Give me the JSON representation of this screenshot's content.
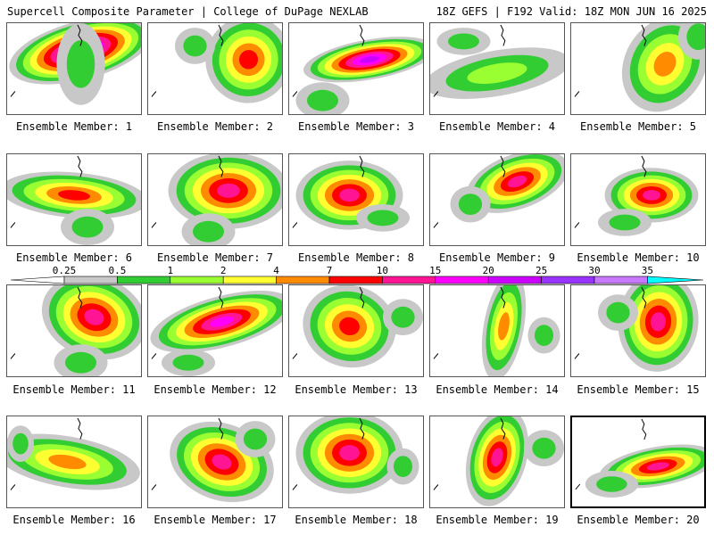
{
  "header": {
    "left": "Supercell Composite Parameter | College of DuPage NEXLAB",
    "right": "18Z GEFS | F192 Valid: 18Z MON JUN 16 2025"
  },
  "colorbar": {
    "ticks": [
      "0.25",
      "0.5",
      "1",
      "2",
      "4",
      "7",
      "10",
      "15",
      "20",
      "25",
      "30",
      "35"
    ],
    "colors": [
      "#ffffff",
      "#c8c8c8",
      "#32cd32",
      "#9aff32",
      "#ffff32",
      "#ff8c00",
      "#ff0000",
      "#ff1493",
      "#ff00ff",
      "#cc00ff",
      "#9933ff",
      "#c878ff",
      "#00ffff"
    ]
  },
  "members": [
    {
      "label": "Ensemble Member: 1",
      "peak": 25
    },
    {
      "label": "Ensemble Member: 2",
      "peak": 7
    },
    {
      "label": "Ensemble Member: 3",
      "peak": 20
    },
    {
      "label": "Ensemble Member: 4",
      "peak": 1
    },
    {
      "label": "Ensemble Member: 5",
      "peak": 4
    },
    {
      "label": "Ensemble Member: 6",
      "peak": 7
    },
    {
      "label": "Ensemble Member: 7",
      "peak": 10
    },
    {
      "label": "Ensemble Member: 8",
      "peak": 10
    },
    {
      "label": "Ensemble Member: 9",
      "peak": 10
    },
    {
      "label": "Ensemble Member: 10",
      "peak": 10
    },
    {
      "label": "Ensemble Member: 11",
      "peak": 10
    },
    {
      "label": "Ensemble Member: 12",
      "peak": 15
    },
    {
      "label": "Ensemble Member: 13",
      "peak": 7
    },
    {
      "label": "Ensemble Member: 14",
      "peak": 4
    },
    {
      "label": "Ensemble Member: 15",
      "peak": 10
    },
    {
      "label": "Ensemble Member: 16",
      "peak": 4
    },
    {
      "label": "Ensemble Member: 17",
      "peak": 10
    },
    {
      "label": "Ensemble Member: 18",
      "peak": 10
    },
    {
      "label": "Ensemble Member: 19",
      "peak": 10
    },
    {
      "label": "Ensemble Member: 20",
      "peak": 10
    }
  ]
}
